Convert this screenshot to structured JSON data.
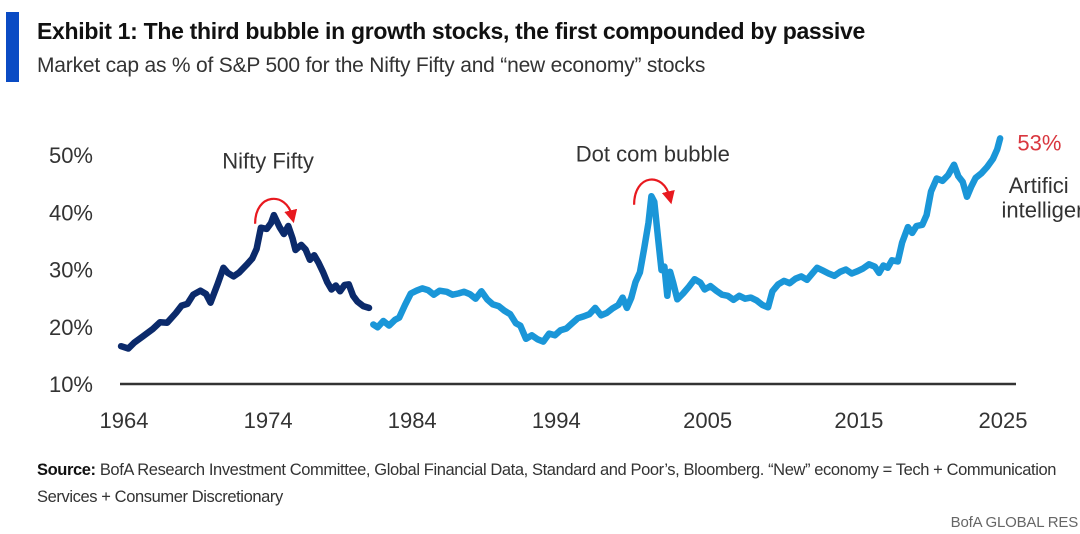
{
  "header": {
    "title": "Exhibit 1: The third bubble in growth stocks, the first compounded by passive",
    "subtitle": "Market cap as % of S&P 500 for the Nifty Fifty and “new economy” stocks",
    "accent_color": "#0a4bc4"
  },
  "footer": {
    "source_label": "Source:",
    "source_text": " BofA Research Investment Committee, Global Financial Data, Standard and Poor’s, Bloomberg. “New” economy = Tech + Communication Services + Consumer Discretionary",
    "brand": "BofA GLOBAL RES"
  },
  "chart_data": {
    "type": "line",
    "title": "Exhibit 1: The third bubble in growth stocks, the first compounded by passive",
    "subtitle": "Market cap as % of S&P 500 for the Nifty Fifty and “new economy” stocks",
    "xlabel": "",
    "ylabel": "",
    "xlim": [
      1964,
      2025
    ],
    "ylim": [
      10,
      50
    ],
    "x_ticks": [
      {
        "value": 1964,
        "label": "1964"
      },
      {
        "value": 1974,
        "label": "1974"
      },
      {
        "value": 1984,
        "label": "1984"
      },
      {
        "value": 1994,
        "label": "1994"
      },
      {
        "value": 2004.5,
        "label": "2005"
      },
      {
        "value": 2015,
        "label": "2015"
      },
      {
        "value": 2025,
        "label": "2025"
      }
    ],
    "y_ticks": [
      {
        "value": 50,
        "label": "50%"
      },
      {
        "value": 40,
        "label": "40%"
      },
      {
        "value": 30,
        "label": "30%"
      },
      {
        "value": 20,
        "label": "20%"
      },
      {
        "value": 10,
        "label": "10%"
      }
    ],
    "grid": false,
    "legend": "none",
    "series": [
      {
        "name": "Nifty Fifty",
        "color": "#0b2a6b",
        "points": [
          [
            1963.8,
            16.6
          ],
          [
            1964.3,
            16.2
          ],
          [
            1964.7,
            17.2
          ],
          [
            1965.3,
            18.3
          ],
          [
            1966.0,
            19.6
          ],
          [
            1966.5,
            20.8
          ],
          [
            1967.0,
            20.7
          ],
          [
            1967.6,
            22.4
          ],
          [
            1968.0,
            23.7
          ],
          [
            1968.4,
            24.0
          ],
          [
            1968.8,
            25.6
          ],
          [
            1969.3,
            26.3
          ],
          [
            1969.7,
            25.7
          ],
          [
            1970.0,
            24.2
          ],
          [
            1970.5,
            27.5
          ],
          [
            1970.9,
            30.3
          ],
          [
            1971.2,
            29.4
          ],
          [
            1971.6,
            28.8
          ],
          [
            1972.0,
            29.5
          ],
          [
            1972.5,
            30.8
          ],
          [
            1972.9,
            31.9
          ],
          [
            1973.2,
            33.6
          ],
          [
            1973.5,
            37.3
          ],
          [
            1973.9,
            37.1
          ],
          [
            1974.2,
            38.1
          ],
          [
            1974.4,
            39.5
          ],
          [
            1974.8,
            37.4
          ],
          [
            1975.1,
            36.2
          ],
          [
            1975.4,
            37.6
          ],
          [
            1975.7,
            35.4
          ],
          [
            1975.9,
            33.4
          ],
          [
            1976.3,
            34.3
          ],
          [
            1976.6,
            33.5
          ],
          [
            1976.9,
            31.7
          ],
          [
            1977.2,
            32.5
          ],
          [
            1977.5,
            31.2
          ],
          [
            1977.8,
            29.6
          ],
          [
            1978.1,
            27.8
          ],
          [
            1978.4,
            26.5
          ],
          [
            1978.7,
            27.2
          ],
          [
            1979.0,
            26.2
          ],
          [
            1979.3,
            27.3
          ],
          [
            1979.6,
            27.4
          ],
          [
            1979.9,
            25.4
          ],
          [
            1980.2,
            24.4
          ],
          [
            1980.6,
            23.6
          ],
          [
            1981.0,
            23.3
          ]
        ]
      },
      {
        "name": "“New economy” stocks",
        "color": "#1a96d8",
        "points": [
          [
            1981.3,
            20.4
          ],
          [
            1981.6,
            19.9
          ],
          [
            1982.0,
            21.0
          ],
          [
            1982.4,
            20.2
          ],
          [
            1982.8,
            21.2
          ],
          [
            1983.1,
            21.6
          ],
          [
            1983.5,
            23.8
          ],
          [
            1983.9,
            25.8
          ],
          [
            1984.3,
            26.3
          ],
          [
            1984.7,
            26.7
          ],
          [
            1985.1,
            26.4
          ],
          [
            1985.5,
            25.6
          ],
          [
            1985.9,
            26.3
          ],
          [
            1986.4,
            26.1
          ],
          [
            1986.8,
            25.6
          ],
          [
            1987.2,
            25.8
          ],
          [
            1987.6,
            26.1
          ],
          [
            1988.0,
            25.7
          ],
          [
            1988.4,
            24.9
          ],
          [
            1988.8,
            26.2
          ],
          [
            1989.2,
            24.8
          ],
          [
            1989.6,
            23.9
          ],
          [
            1990.0,
            23.6
          ],
          [
            1990.4,
            22.8
          ],
          [
            1990.8,
            22.2
          ],
          [
            1991.2,
            20.6
          ],
          [
            1991.5,
            20.2
          ],
          [
            1991.9,
            17.9
          ],
          [
            1992.3,
            18.5
          ],
          [
            1992.7,
            17.8
          ],
          [
            1993.1,
            17.4
          ],
          [
            1993.5,
            18.8
          ],
          [
            1993.9,
            18.5
          ],
          [
            1994.3,
            19.4
          ],
          [
            1994.7,
            19.7
          ],
          [
            1995.1,
            20.6
          ],
          [
            1995.5,
            21.5
          ],
          [
            1995.9,
            21.8
          ],
          [
            1996.3,
            22.2
          ],
          [
            1996.7,
            23.3
          ],
          [
            1997.1,
            22.0
          ],
          [
            1997.5,
            22.4
          ],
          [
            1997.9,
            23.2
          ],
          [
            1998.3,
            23.8
          ],
          [
            1998.6,
            25.1
          ],
          [
            1998.9,
            23.3
          ],
          [
            1999.2,
            25.0
          ],
          [
            1999.5,
            27.8
          ],
          [
            1999.8,
            29.5
          ],
          [
            2000.1,
            33.7
          ],
          [
            2000.4,
            38.2
          ],
          [
            2000.6,
            42.8
          ],
          [
            2000.8,
            41.8
          ],
          [
            2001.1,
            34.6
          ],
          [
            2001.3,
            29.9
          ],
          [
            2001.5,
            30.5
          ],
          [
            2001.7,
            25.4
          ],
          [
            2001.9,
            29.6
          ],
          [
            2002.1,
            27.8
          ],
          [
            2002.4,
            24.8
          ],
          [
            2002.8,
            25.8
          ],
          [
            2003.2,
            27.0
          ],
          [
            2003.6,
            28.3
          ],
          [
            2004.0,
            27.7
          ],
          [
            2004.3,
            26.5
          ],
          [
            2004.7,
            27.1
          ],
          [
            2005.1,
            26.3
          ],
          [
            2005.5,
            25.6
          ],
          [
            2005.9,
            25.4
          ],
          [
            2006.3,
            24.7
          ],
          [
            2006.7,
            25.4
          ],
          [
            2007.1,
            24.9
          ],
          [
            2007.5,
            25.1
          ],
          [
            2007.9,
            24.6
          ],
          [
            2008.3,
            23.8
          ],
          [
            2008.7,
            23.4
          ],
          [
            2009.0,
            26.2
          ],
          [
            2009.4,
            27.4
          ],
          [
            2009.8,
            28.0
          ],
          [
            2010.2,
            27.6
          ],
          [
            2010.6,
            28.4
          ],
          [
            2011.0,
            28.8
          ],
          [
            2011.4,
            28.2
          ],
          [
            2011.8,
            29.4
          ],
          [
            2012.1,
            30.3
          ],
          [
            2012.5,
            29.8
          ],
          [
            2012.9,
            29.3
          ],
          [
            2013.3,
            28.9
          ],
          [
            2013.7,
            29.6
          ],
          [
            2014.1,
            30.0
          ],
          [
            2014.5,
            29.3
          ],
          [
            2014.9,
            29.7
          ],
          [
            2015.3,
            30.2
          ],
          [
            2015.7,
            30.9
          ],
          [
            2016.1,
            30.5
          ],
          [
            2016.4,
            29.4
          ],
          [
            2016.7,
            30.7
          ],
          [
            2017.0,
            30.3
          ],
          [
            2017.3,
            31.6
          ],
          [
            2017.7,
            31.4
          ],
          [
            2018.0,
            34.7
          ],
          [
            2018.4,
            37.4
          ],
          [
            2018.7,
            36.4
          ],
          [
            2019.0,
            37.6
          ],
          [
            2019.4,
            37.8
          ],
          [
            2019.7,
            39.5
          ],
          [
            2020.0,
            43.6
          ],
          [
            2020.4,
            45.9
          ],
          [
            2020.8,
            45.5
          ],
          [
            2021.2,
            46.5
          ],
          [
            2021.6,
            48.3
          ],
          [
            2021.9,
            46.3
          ],
          [
            2022.2,
            45.3
          ],
          [
            2022.5,
            42.7
          ],
          [
            2022.8,
            44.5
          ],
          [
            2023.1,
            46.0
          ],
          [
            2023.5,
            46.8
          ],
          [
            2023.9,
            47.9
          ],
          [
            2024.3,
            49.3
          ],
          [
            2024.6,
            51.0
          ],
          [
            2024.8,
            52.9
          ]
        ]
      }
    ],
    "annotations": [
      {
        "text": "Nifty Fifty",
        "x": 1974.0,
        "y": 49.0,
        "kind": "label"
      },
      {
        "text": "Dot com bubble",
        "x": 2000.7,
        "y": 50.3,
        "kind": "label"
      },
      {
        "text": "53%",
        "x": 2026.0,
        "y": 52.2,
        "kind": "value",
        "color": "#d9363e"
      },
      {
        "text": "Artifici",
        "x": 2025.4,
        "y": 44.8,
        "kind": "label"
      },
      {
        "text": "intelliger",
        "x": 2024.9,
        "y": 40.5,
        "kind": "label"
      }
    ],
    "arrows": [
      {
        "name": "nifty-fifty-peak-arrow",
        "from_x": 1973.1,
        "to_x": 1975.8,
        "peak_y": 41.6,
        "base_y": 38.0,
        "color": "#e8191f"
      },
      {
        "name": "dotcom-peak-arrow",
        "from_x": 1999.4,
        "to_x": 2002.0,
        "peak_y": 45.0,
        "base_y": 41.3,
        "color": "#e8191f"
      }
    ]
  }
}
